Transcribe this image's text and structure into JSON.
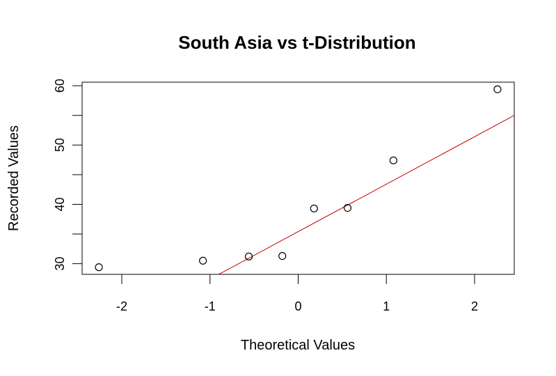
{
  "chart_data": {
    "type": "scatter",
    "title": "South Asia vs t-Distribution",
    "xlabel": "Theoretical Values",
    "ylabel": "Recorded Values",
    "xlim": [
      -2.45,
      2.45
    ],
    "ylim": [
      28.2,
      60.6
    ],
    "xticks": [
      -2,
      -1,
      0,
      1,
      2
    ],
    "yticks": [
      30,
      40,
      50,
      60
    ],
    "y_minor_ticks": [
      35,
      45,
      55
    ],
    "grid": false,
    "legend": "none",
    "series": [
      {
        "x": [
          -2.26,
          -1.08,
          -0.56,
          -0.18,
          0.18,
          0.56,
          1.08,
          2.26
        ],
        "y": [
          29.4,
          30.5,
          31.2,
          31.3,
          39.3,
          39.4,
          47.4,
          59.4
        ],
        "marker": "open-circle",
        "color": "#000000"
      }
    ],
    "reference_line": {
      "color": "#cc0000",
      "intercept": 35.4,
      "slope": 8.0
    }
  }
}
